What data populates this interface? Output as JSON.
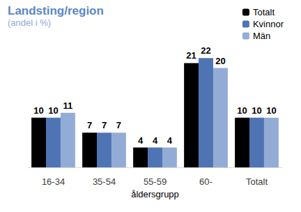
{
  "chart_data": {
    "type": "bar",
    "title": "Landsting/region",
    "subtitle": "(andel i %)",
    "x_label": "åldersgrupp",
    "categories": [
      "16-34",
      "35-54",
      "55-59",
      "60-",
      "Totalt"
    ],
    "series": [
      {
        "name": "Totalt",
        "color": "#000000",
        "values": [
          10,
          7,
          4,
          21,
          10
        ]
      },
      {
        "name": "Kvinnor",
        "color": "#4f74b4",
        "values": [
          10,
          7,
          4,
          22,
          10
        ]
      },
      {
        "name": "Män",
        "color": "#93acd6",
        "values": [
          11,
          7,
          4,
          20,
          10
        ]
      }
    ],
    "ylim": [
      0,
      25
    ],
    "grid": false,
    "legend": "top-right",
    "data_labels": true,
    "tick_labels": "x"
  }
}
